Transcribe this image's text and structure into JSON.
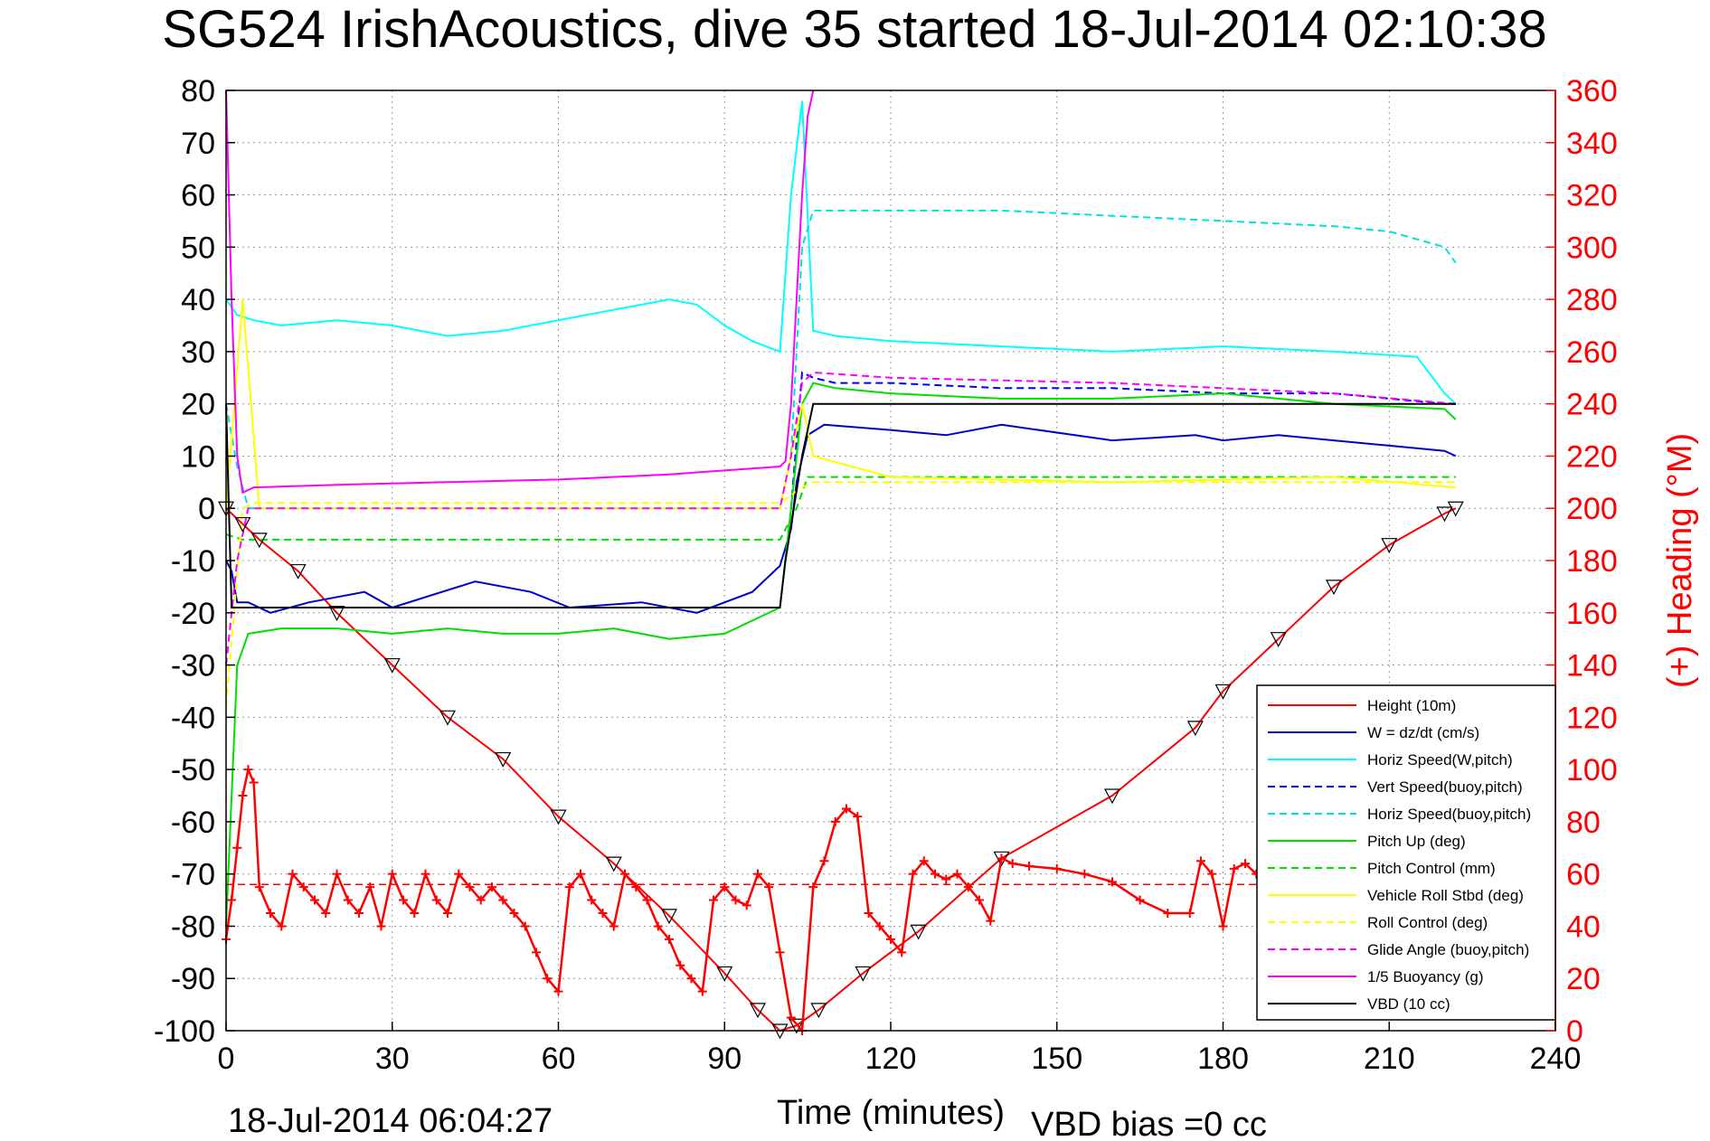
{
  "chart_data": {
    "type": "line",
    "title": "SG524 IrishAcoustics, dive 35 started 18-Jul-2014 02:10:38",
    "xlabel": "Time (minutes)",
    "ylabel": "",
    "y2label": "(+) Heading (°M)",
    "xlim": [
      0,
      240
    ],
    "ylim": [
      -100,
      80
    ],
    "y2lim": [
      0,
      360
    ],
    "xticks": [
      0,
      30,
      60,
      90,
      120,
      150,
      180,
      210,
      240
    ],
    "yticks": [
      80,
      70,
      60,
      50,
      40,
      30,
      20,
      10,
      0,
      -10,
      -20,
      -30,
      -40,
      -50,
      -60,
      -70,
      -80,
      -90,
      -100
    ],
    "y2ticks": [
      360,
      340,
      320,
      300,
      280,
      260,
      240,
      220,
      200,
      180,
      160,
      140,
      120,
      100,
      80,
      60,
      40,
      20,
      0
    ],
    "grid": true,
    "legend_position": "bottom-right",
    "footer_left": "18-Jul-2014 06:04:27",
    "footer_right": "VBD bias =0 cc",
    "series": [
      {
        "name": "Height (10m)",
        "color": "#ff0000",
        "style": "solid",
        "x": [
          0,
          3,
          6,
          13,
          20,
          30,
          40,
          50,
          60,
          70,
          80,
          90,
          96,
          100,
          103,
          107,
          115,
          125,
          140,
          160,
          175,
          180,
          190,
          200,
          210,
          220,
          222
        ],
        "y": [
          0,
          -3,
          -6,
          -12,
          -20,
          -30,
          -40,
          -48,
          -59,
          -68,
          -78,
          -89,
          -96,
          -100,
          -99,
          -96,
          -89,
          -81,
          -67,
          -55,
          -42,
          -35,
          -25,
          -15,
          -7,
          -1,
          0
        ]
      },
      {
        "name": "W = dz/dt (cm/s)",
        "color": "#0000cc",
        "style": "solid",
        "x": [
          0,
          1,
          2,
          4,
          8,
          15,
          25,
          30,
          45,
          55,
          62,
          75,
          85,
          95,
          100,
          102,
          103,
          105,
          108,
          120,
          130,
          140,
          160,
          175,
          180,
          190,
          200,
          210,
          220,
          222
        ],
        "y": [
          -10,
          -12,
          -18,
          -18,
          -20,
          -18,
          -16,
          -19,
          -14,
          -16,
          -19,
          -18,
          -20,
          -16,
          -11,
          -4,
          5,
          14,
          16,
          15,
          14,
          16,
          13,
          14,
          13,
          14,
          13,
          12,
          11,
          10
        ]
      },
      {
        "name": "Horiz Speed(W,pitch)",
        "color": "#00ffff",
        "style": "solid",
        "x": [
          0,
          2,
          5,
          10,
          20,
          30,
          40,
          50,
          60,
          70,
          80,
          85,
          90,
          95,
          100,
          102,
          104,
          106,
          110,
          120,
          140,
          160,
          180,
          200,
          215,
          220,
          222
        ],
        "y": [
          40,
          37,
          36,
          35,
          36,
          35,
          33,
          34,
          36,
          38,
          40,
          39,
          35,
          32,
          30,
          60,
          78,
          34,
          33,
          32,
          31,
          30,
          31,
          30,
          29,
          22,
          20
        ]
      },
      {
        "name": "Vert Speed(buoy,pitch)",
        "color": "#0000ff",
        "style": "dashed",
        "x": [
          102,
          104,
          106,
          110,
          120,
          140,
          160,
          180,
          200,
          220,
          222
        ],
        "y": [
          0,
          26,
          25,
          24,
          24,
          23,
          23,
          22,
          22,
          20,
          20
        ]
      },
      {
        "name": "Horiz Speed(buoy,pitch)",
        "color": "#00e0e0",
        "style": "dashed",
        "x": [
          0,
          2,
          4,
          100,
          102,
          104,
          106,
          110,
          120,
          140,
          160,
          180,
          200,
          210,
          220,
          222
        ],
        "y": [
          20,
          8,
          0,
          0,
          10,
          50,
          57,
          57,
          57,
          57,
          56,
          55,
          54,
          53,
          50,
          47
        ]
      },
      {
        "name": "Pitch Up (deg)",
        "color": "#00dd00",
        "style": "solid",
        "x": [
          0,
          2,
          4,
          10,
          20,
          30,
          40,
          50,
          60,
          70,
          80,
          90,
          100,
          102,
          104,
          106,
          110,
          120,
          140,
          160,
          180,
          200,
          220,
          222
        ],
        "y": [
          -80,
          -30,
          -24,
          -23,
          -23,
          -24,
          -23,
          -24,
          -24,
          -23,
          -25,
          -24,
          -19,
          0,
          20,
          24,
          23,
          22,
          21,
          21,
          22,
          20,
          19,
          17
        ]
      },
      {
        "name": "Pitch Control (mm)",
        "color": "#00dd00",
        "style": "dashed",
        "x": [
          0,
          3,
          5,
          100,
          103,
          105,
          222
        ],
        "y": [
          -5,
          -6,
          -6,
          -6,
          0,
          6,
          6
        ]
      },
      {
        "name": "Vehicle Roll Stbd (deg)",
        "color": "#ffff00",
        "style": "solid",
        "x": [
          0,
          3,
          6,
          10,
          40,
          70,
          100,
          104,
          106,
          120,
          160,
          200,
          222
        ],
        "y": [
          0,
          40,
          0,
          0,
          0,
          0,
          0,
          20,
          10,
          6,
          5,
          6,
          4
        ]
      },
      {
        "name": "Roll Control (deg)",
        "color": "#ffff00",
        "style": "dashed",
        "x": [
          0,
          3,
          5,
          100,
          104,
          106,
          222
        ],
        "y": [
          -38,
          0,
          1,
          1,
          4,
          5,
          5
        ]
      },
      {
        "name": "Glide Angle (buoy,pitch)",
        "color": "#ff00ff",
        "style": "dashed",
        "x": [
          0,
          2,
          4,
          100,
          102,
          104,
          106,
          120,
          160,
          200,
          222
        ],
        "y": [
          -30,
          -10,
          0,
          0,
          10,
          24,
          26,
          25,
          24,
          22,
          20
        ]
      },
      {
        "name": "1/5 Buoyancy (g)",
        "color": "#ff00ff",
        "style": "solid",
        "x": [
          0,
          1,
          2,
          3,
          5,
          20,
          40,
          60,
          80,
          100,
          101,
          102,
          104,
          105,
          106
        ],
        "y": [
          80,
          40,
          10,
          3,
          4,
          4.5,
          5,
          5.5,
          6.5,
          8,
          9,
          20,
          60,
          75,
          80
        ]
      },
      {
        "name": "VBD (10 cc)",
        "color": "#000000",
        "style": "solid",
        "x": [
          0,
          0.5,
          1,
          100,
          101,
          104,
          106,
          222
        ],
        "y": [
          20,
          0,
          -19,
          -19,
          -10,
          10,
          20,
          20
        ]
      }
    ],
    "heading": {
      "name": "(+) Heading (°M)",
      "color": "#ff0000",
      "axis": "right",
      "reference_line": 56,
      "x": [
        0,
        1,
        2,
        3,
        4,
        5,
        6,
        8,
        10,
        12,
        14,
        16,
        18,
        20,
        22,
        24,
        26,
        28,
        30,
        32,
        34,
        36,
        38,
        40,
        42,
        44,
        46,
        48,
        50,
        52,
        54,
        56,
        58,
        60,
        62,
        64,
        66,
        68,
        70,
        72,
        74,
        76,
        78,
        80,
        82,
        84,
        86,
        88,
        90,
        92,
        94,
        96,
        98,
        100,
        102,
        104,
        106,
        108,
        110,
        112,
        114,
        116,
        118,
        120,
        122,
        124,
        126,
        128,
        130,
        132,
        134,
        136,
        138,
        140,
        142,
        145,
        150,
        155,
        160,
        165,
        170,
        174,
        176,
        178,
        180,
        182,
        184,
        186
      ],
      "y": [
        35,
        50,
        70,
        90,
        100,
        95,
        55,
        45,
        40,
        60,
        55,
        50,
        45,
        60,
        50,
        45,
        55,
        40,
        60,
        50,
        45,
        60,
        50,
        45,
        60,
        55,
        50,
        55,
        50,
        45,
        40,
        30,
        20,
        15,
        55,
        60,
        50,
        45,
        40,
        60,
        55,
        50,
        40,
        35,
        25,
        20,
        15,
        50,
        55,
        50,
        48,
        60,
        55,
        30,
        5,
        0,
        55,
        65,
        80,
        85,
        82,
        45,
        40,
        35,
        30,
        60,
        65,
        60,
        58,
        60,
        55,
        50,
        42,
        66,
        64,
        63,
        62,
        60,
        57,
        50,
        45,
        45,
        65,
        60,
        40,
        62,
        64,
        60
      ]
    }
  }
}
